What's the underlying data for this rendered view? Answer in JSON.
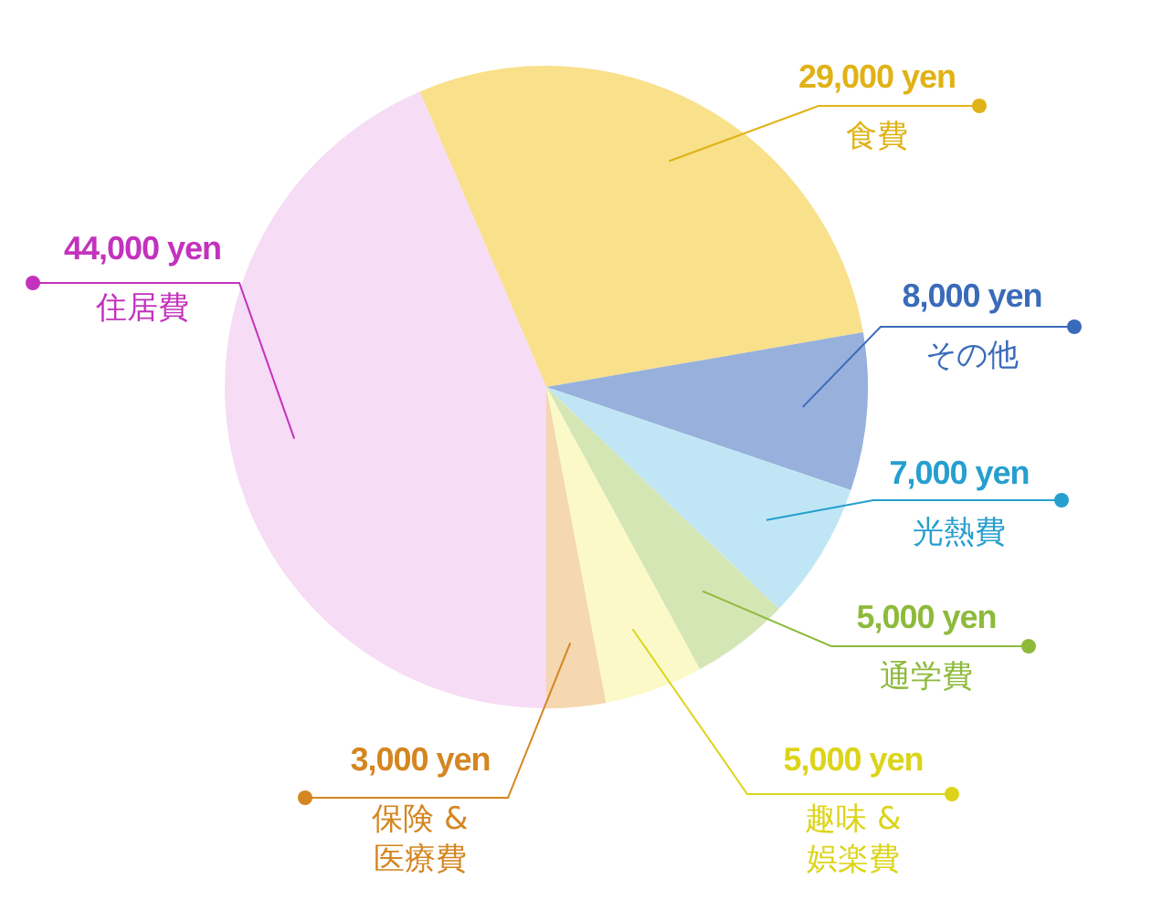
{
  "chart_data": {
    "type": "pie",
    "categories": [
      "食費",
      "その他",
      "光熱費",
      "通学費",
      "趣味 & 娯楽費",
      "保険 & 医療費",
      "住居費"
    ],
    "values": [
      29000,
      8000,
      7000,
      5000,
      5000,
      3000,
      44000
    ],
    "colors": [
      "#f9e08a",
      "#97b1dc",
      "#c0e6f5",
      "#d5e6b5",
      "#fbf9c8",
      "#f5d7b0",
      "#f6dcf5"
    ],
    "value_labels": [
      "29,000 yen",
      "8,000 yen",
      "7,000 yen",
      "5,000 yen",
      "5,000 yen",
      "3,000 yen",
      "44,000 yen"
    ]
  }
}
